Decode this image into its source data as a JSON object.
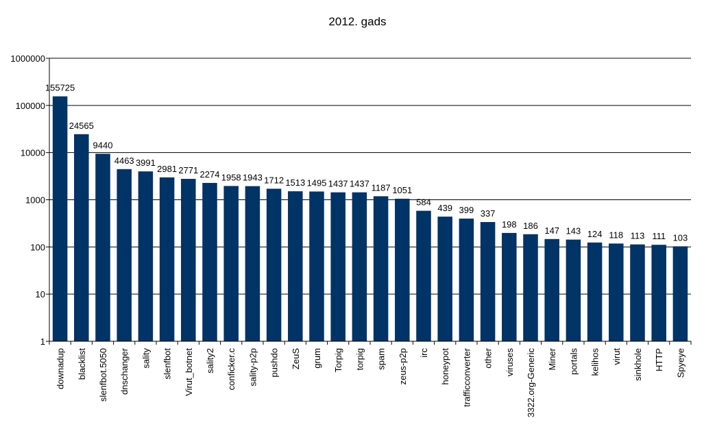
{
  "chart_data": {
    "type": "bar",
    "title": "2012. gads",
    "xlabel": "",
    "ylabel": "",
    "yscale": "log",
    "ylim": [
      1,
      1000000
    ],
    "yticks": [
      "1",
      "10",
      "100",
      "1000",
      "10000",
      "100000",
      "1000000"
    ],
    "grid": true,
    "legend": "none",
    "bar_color": "#003366",
    "categories": [
      "downadup",
      "blacklist",
      "slenfbot.5050",
      "dnschanger",
      "sality",
      "slenfbot",
      "Virut_botnet",
      "sality2",
      "conficker.c",
      "sality-p2p",
      "pushdo",
      "ZeuS",
      "grum",
      "Torpig",
      "torpig",
      "spam",
      "zeus-p2p",
      "irc",
      "honeypot",
      "trafficconverter",
      "other",
      "viruses",
      "3322.org-Generic",
      "Miner",
      "portals",
      "kelihos",
      "virut",
      "sinkhole",
      "HTTP",
      "Spyeye"
    ],
    "values": [
      155725,
      24565,
      9440,
      4463,
      3991,
      2981,
      2771,
      2274,
      1958,
      1943,
      1712,
      1513,
      1495,
      1437,
      1437,
      1187,
      1051,
      584,
      439,
      399,
      337,
      198,
      186,
      147,
      143,
      124,
      118,
      113,
      111,
      103
    ],
    "data_labels": [
      "155725",
      "24565",
      "9440",
      "4463",
      "3991",
      "2981",
      "2771",
      "2274",
      "1958",
      "1943",
      "1712",
      "1513",
      "1495",
      "1437",
      "1437",
      "1187",
      "1051",
      "584",
      "439",
      "399",
      "337",
      "198",
      "186",
      "147",
      "143",
      "124",
      "118",
      "113",
      "111",
      "103"
    ]
  }
}
